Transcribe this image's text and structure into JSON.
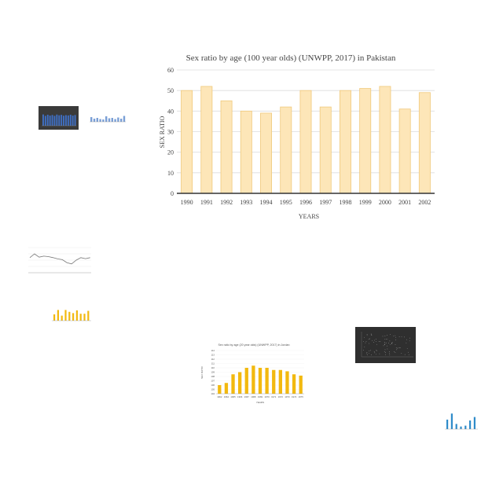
{
  "chart_data": {
    "type": "bar",
    "title": "Sex ratio by age (100 year olds) (UNWPP, 2017) in Pakistan",
    "xlabel": "YEARS",
    "ylabel": "SEX RATIO",
    "categories": [
      "1990",
      "1991",
      "1992",
      "1993",
      "1994",
      "1995",
      "1996",
      "1997",
      "1998",
      "1999",
      "2000",
      "2001",
      "2002"
    ],
    "values": [
      50,
      52,
      45,
      40,
      39,
      42,
      50,
      42,
      50,
      51,
      52,
      41,
      49
    ],
    "ylim": [
      0,
      60
    ],
    "yticks": [
      0,
      10,
      20,
      30,
      40,
      50,
      60
    ],
    "grid": true,
    "legend": "none",
    "colors": {
      "bar_fill": "#fde6b8",
      "bar_stroke": "#f0c97c",
      "axis": "#333333",
      "grid": "#dddddd",
      "text": "#444444"
    }
  },
  "thumbnails": {
    "dark_bar_thumb": {
      "bg": "#3a3a3a",
      "bar": "#3f6fc4"
    },
    "small_blue_bar_thumb": {
      "bar": "#7a9fd6"
    },
    "line_chart_thumb": {
      "line": "#777777"
    },
    "yellow_bar_small_thumb": {
      "bar": "#f2b90f"
    },
    "yellow_bar_thumb": {
      "title": "Sex ratio by age (20 year olds) (UNWPP, 2017) in Jordan",
      "ylabel": "SEX RATIO",
      "xlabel": "YEARS",
      "yticks": [
        "104",
        "105",
        "106",
        "107",
        "108",
        "109",
        "110",
        "111",
        "112",
        "113",
        "114"
      ],
      "categories": [
        "1962",
        "1964",
        "1965",
        "1966",
        "1967",
        "1968",
        "1969",
        "1970",
        "1971",
        "1972",
        "1973",
        "1974",
        "1975"
      ],
      "values": [
        106,
        106.5,
        108.5,
        109,
        110,
        110.5,
        110,
        110,
        109.5,
        109.5,
        109.2,
        108.5,
        108.2
      ],
      "ylim": [
        104,
        114
      ],
      "bar": "#f2b90f"
    },
    "dark_scatter_thumb": {
      "bg": "#2f2f2f",
      "dot": "#bbbbbb"
    },
    "blue_bar_thumb": {
      "bar": "#2e8bc9"
    }
  }
}
